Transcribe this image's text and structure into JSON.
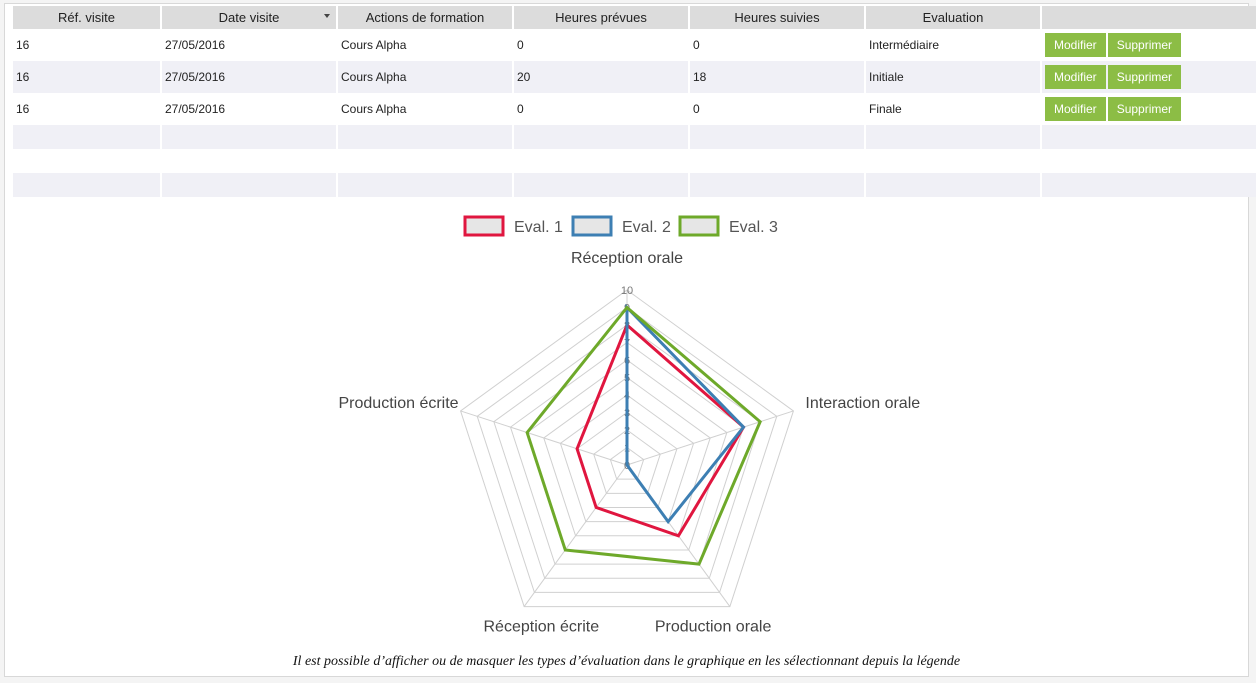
{
  "table": {
    "columns": [
      {
        "label": "Réf. visite",
        "width": 147
      },
      {
        "label": "Date visite",
        "width": 174,
        "sortable": true
      },
      {
        "label": "Actions de formation",
        "width": 174
      },
      {
        "label": "Heures prévues",
        "width": 174
      },
      {
        "label": "Heures suivies",
        "width": 174
      },
      {
        "label": "Evaluation",
        "width": 174
      },
      {
        "label": "",
        "width": 215
      }
    ],
    "rows": [
      {
        "ref": "16",
        "date": "27/05/2016",
        "action": "Cours Alpha",
        "prevues": "0",
        "suivies": "0",
        "evaluation": "Intermédiaire"
      },
      {
        "ref": "16",
        "date": "27/05/2016",
        "action": "Cours Alpha",
        "prevues": "20",
        "suivies": "18",
        "evaluation": "Initiale"
      },
      {
        "ref": "16",
        "date": "27/05/2016",
        "action": "Cours Alpha",
        "prevues": "0",
        "suivies": "0",
        "evaluation": "Finale"
      }
    ],
    "edit_label": "Modifier",
    "delete_label": "Supprimer",
    "empty_rows": 3
  },
  "colors": {
    "button_green": "#8cbd45",
    "eval1": "#e0163f",
    "eval2": "#3d7fb3",
    "eval3": "#6ea92a",
    "grid": "#d0d0d0"
  },
  "chart_data": {
    "type": "radar",
    "axes": [
      "Réception orale",
      "Interaction orale",
      "Production orale",
      "Réception écrite",
      "Production écrite"
    ],
    "rlim": [
      0,
      10
    ],
    "ticks": [
      "0",
      "1",
      "2",
      "3",
      "4",
      "5",
      "6",
      "7",
      "8",
      "9",
      "10"
    ],
    "grid": true,
    "legend_position": "top",
    "series": [
      {
        "name": "Eval. 1",
        "color": "#e0163f",
        "values": [
          8,
          7,
          5,
          3,
          3
        ]
      },
      {
        "name": "Eval. 2",
        "color": "#3d7fb3",
        "values": [
          9,
          7,
          4,
          0,
          0
        ]
      },
      {
        "name": "Eval. 3",
        "color": "#6ea92a",
        "values": [
          9,
          8,
          7,
          6,
          6
        ]
      }
    ]
  },
  "caption": "Il est possible d’afficher ou de masquer les types d’évaluation dans le graphique en les sélectionnant depuis la légende"
}
